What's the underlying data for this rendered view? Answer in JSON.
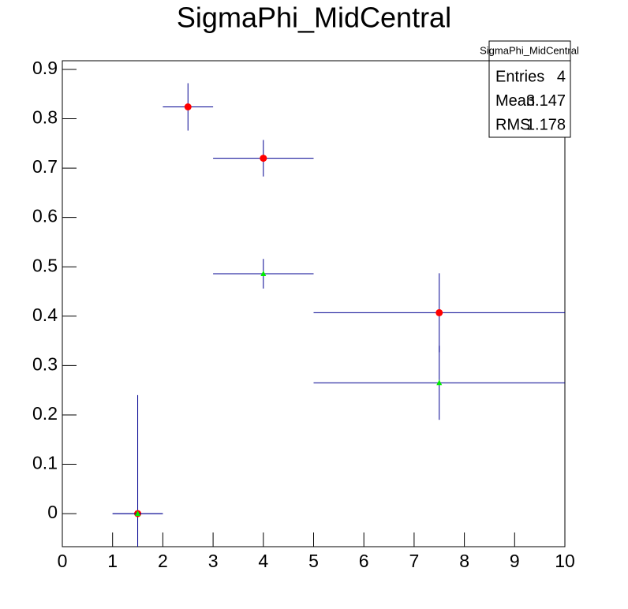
{
  "chart_data": {
    "type": "errorbar",
    "title": "SigmaPhi_MidCentral",
    "xlim": [
      0,
      10
    ],
    "ylim": [
      -0.067,
      0.9175
    ],
    "xticks": [
      0,
      1,
      2,
      3,
      4,
      5,
      6,
      7,
      8,
      9,
      10
    ],
    "yticks": [
      0,
      0.1,
      0.2,
      0.3,
      0.4,
      0.5,
      0.6,
      0.7,
      0.8,
      0.9
    ],
    "error_color": "#000090",
    "series": [
      {
        "color": "#ff0000",
        "marker": "circle",
        "x": [
          1.5,
          2.5,
          4,
          7.5
        ],
        "x_err": [
          0.5,
          0.5,
          1,
          2.5
        ],
        "values": [
          0,
          0.824,
          0.72,
          0.407
        ],
        "errors": [
          0.24,
          0.048,
          0.037,
          0.08
        ]
      },
      {
        "color": "#00ee00",
        "marker": "triangle",
        "x": [
          1.5,
          2.5,
          4,
          7.5
        ],
        "x_err": [
          0.5,
          0.5,
          1,
          2.5
        ],
        "values": [
          0,
          null,
          0.486,
          0.265
        ],
        "errors": [
          0,
          null,
          0.03,
          0.075
        ]
      }
    ],
    "stats_box": {
      "title": "SigmaPhi_MidCentral",
      "rows": [
        [
          "Entries",
          4
        ],
        [
          "Mean",
          3.147
        ],
        [
          "RMS",
          1.178
        ]
      ]
    }
  }
}
